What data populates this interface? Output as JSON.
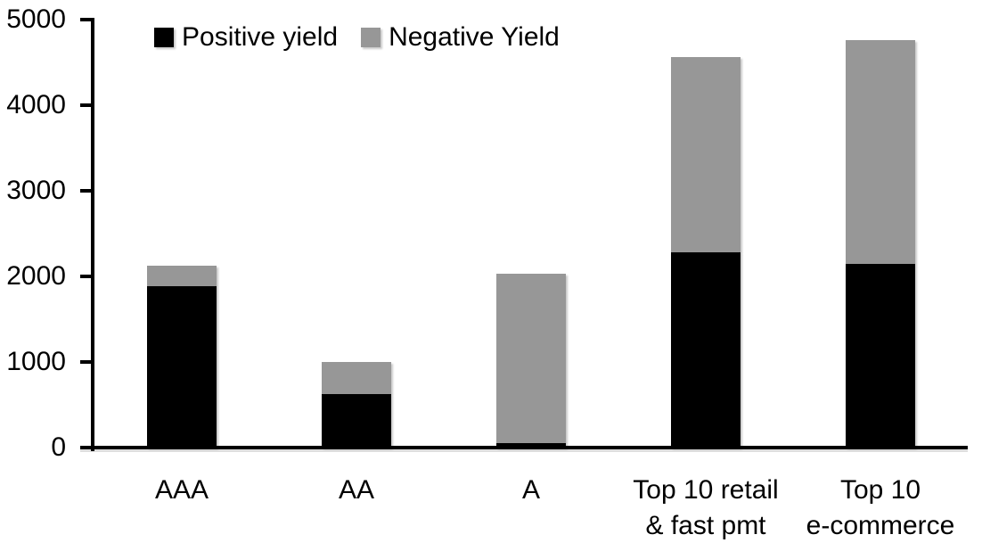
{
  "chart_data": {
    "type": "bar",
    "stacked": true,
    "categories": [
      "AAA",
      "AA",
      "A",
      "Top 10 retail\n& fast pmt",
      "Top 10\ne-commerce"
    ],
    "series": [
      {
        "name": "Positive yield",
        "color": "#000000",
        "values": [
          1890,
          620,
          50,
          2280,
          2150
        ]
      },
      {
        "name": "Negative Yield",
        "color": "#979797",
        "values": [
          230,
          380,
          1980,
          2280,
          2610
        ]
      }
    ],
    "ylim": [
      0,
      5000
    ],
    "yticks": [
      0,
      1000,
      2000,
      3000,
      4000,
      5000
    ],
    "grid": false,
    "legend_position": "top",
    "colors": {
      "axis": "#000000",
      "background": "#FFFFFF",
      "text": "#000000"
    }
  }
}
